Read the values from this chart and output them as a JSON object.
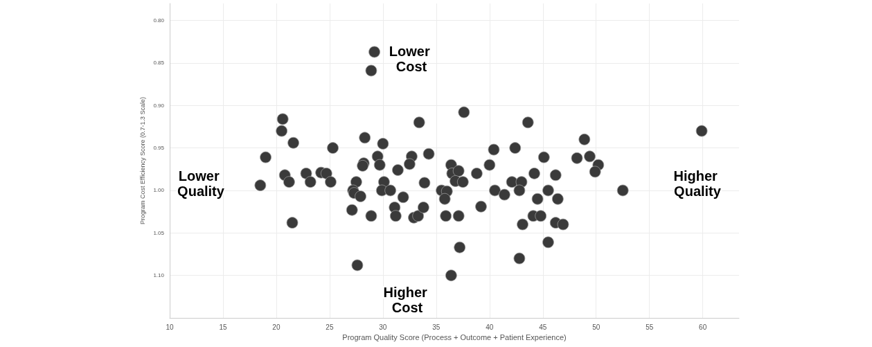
{
  "chart_data": {
    "type": "scatter",
    "xlabel": "Program Quality Score (Process + Outcome + Patient Experience)",
    "ylabel": "Program Cost Efficiency Score (0.7-1.3 Scale)",
    "annotations": [
      "Lower Cost",
      "Higher Cost",
      "Lower Quality",
      "Higher Quality"
    ],
    "x": [
      29.2,
      28.9,
      37.6,
      20.6,
      20.5,
      21.6,
      25.3,
      19.0,
      20.8,
      21.2,
      18.5,
      22.8,
      23.2,
      24.2,
      24.7,
      25.1,
      21.5,
      33.4,
      43.6,
      28.3,
      30.0,
      29.5,
      28.2,
      28.1,
      29.7,
      31.4,
      32.7,
      32.5,
      34.3,
      36.4,
      36.5,
      37.1,
      36.8,
      37.5,
      38.8,
      40.4,
      40.0,
      42.4,
      42.1,
      43.0,
      44.2,
      27.5,
      27.2,
      27.3,
      27.9,
      30.1,
      29.9,
      30.7,
      31.9,
      33.9,
      35.5,
      36.0,
      35.8,
      40.5,
      41.4,
      42.8,
      27.1,
      28.9,
      31.1,
      31.2,
      32.9,
      33.3,
      33.8,
      39.2,
      35.9,
      37.1,
      43.1,
      44.1,
      37.2,
      27.6,
      36.4,
      42.8,
      59.9,
      48.9,
      45.1,
      48.2,
      49.4,
      50.2,
      49.9,
      46.2,
      45.5,
      52.5,
      44.5,
      46.4,
      44.8,
      46.2,
      46.9,
      45.5
    ],
    "values": [
      0.837,
      0.859,
      0.908,
      0.916,
      0.93,
      0.944,
      0.95,
      0.961,
      0.982,
      0.99,
      0.994,
      0.98,
      0.99,
      0.979,
      0.98,
      0.99,
      1.038,
      0.92,
      0.92,
      0.938,
      0.945,
      0.96,
      0.968,
      0.971,
      0.97,
      0.976,
      0.96,
      0.969,
      0.957,
      0.97,
      0.98,
      0.977,
      0.989,
      0.99,
      0.98,
      0.952,
      0.97,
      0.95,
      0.99,
      0.99,
      0.98,
      0.99,
      1.0,
      1.003,
      1.007,
      0.99,
      1.0,
      1.0,
      1.008,
      0.991,
      1.0,
      1.001,
      1.01,
      1.0,
      1.005,
      1.0,
      1.023,
      1.03,
      1.02,
      1.03,
      1.032,
      1.03,
      1.02,
      1.019,
      1.03,
      1.03,
      1.04,
      1.03,
      1.067,
      1.088,
      1.1,
      1.08,
      0.93,
      0.94,
      0.961,
      0.962,
      0.96,
      0.97,
      0.978,
      0.982,
      1.0,
      1.0,
      1.01,
      1.01,
      1.03,
      1.038,
      1.04,
      1.061
    ],
    "color": "#3a3a3a",
    "marker": "circle",
    "grid": true,
    "xlim": [
      10,
      63.4
    ],
    "xticks": [
      10,
      15,
      20,
      25,
      30,
      35,
      40,
      45,
      50,
      55,
      60
    ],
    "ylim": [
      1.15,
      0.78
    ],
    "yticks": [
      {
        "value": 0.8,
        "label": "0.80"
      },
      {
        "value": 0.85,
        "label": "0.85"
      },
      {
        "value": 0.9,
        "label": "0.90"
      },
      {
        "value": 0.95,
        "label": "0.95"
      },
      {
        "value": 1.0,
        "label": "1.00"
      },
      {
        "value": 1.05,
        "label": "1.05"
      },
      {
        "value": 1.1,
        "label": "1.10"
      }
    ]
  }
}
